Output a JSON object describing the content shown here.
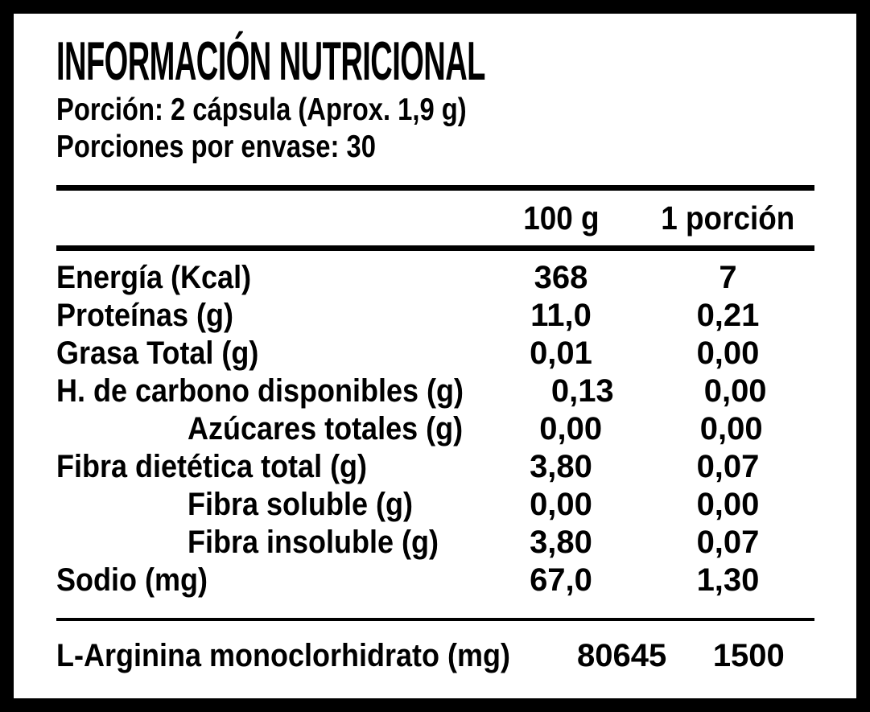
{
  "label": {
    "title": "INFORMACIÓN NUTRICIONAL",
    "serving_line": "Porción: 2 cápsula (Aprox. 1,9 g)",
    "servings_line": "Porciones por envase: 30",
    "columns": [
      "100 g",
      "1 porción"
    ],
    "rows": [
      {
        "name": "Energía (Kcal)",
        "per_100g": "368",
        "per_serving": "7",
        "indent": false
      },
      {
        "name": "Proteínas (g)",
        "per_100g": "11,0",
        "per_serving": "0,21",
        "indent": false
      },
      {
        "name": "Grasa Total (g)",
        "per_100g": "0,01",
        "per_serving": "0,00",
        "indent": false
      },
      {
        "name": "H. de carbono disponibles (g)",
        "per_100g": "0,13",
        "per_serving": "0,00",
        "indent": false
      },
      {
        "name": "Azúcares totales (g)",
        "per_100g": "0,00",
        "per_serving": "0,00",
        "indent": true
      },
      {
        "name": "Fibra dietética total (g)",
        "per_100g": "3,80",
        "per_serving": "0,07",
        "indent": false
      },
      {
        "name": "Fibra soluble (g)",
        "per_100g": "0,00",
        "per_serving": "0,00",
        "indent": true
      },
      {
        "name": "Fibra insoluble (g)",
        "per_100g": "3,80",
        "per_serving": "0,07",
        "indent": true
      },
      {
        "name": "Sodio (mg)",
        "per_100g": "67,0",
        "per_serving": "1,30",
        "indent": false
      }
    ],
    "footer_row": {
      "name": "L-Arginina monoclorhidrato (mg)",
      "per_100g": "80645",
      "per_serving": "1500"
    },
    "colors": {
      "text": "#000000",
      "background": "#ffffff",
      "border": "#000000"
    }
  }
}
